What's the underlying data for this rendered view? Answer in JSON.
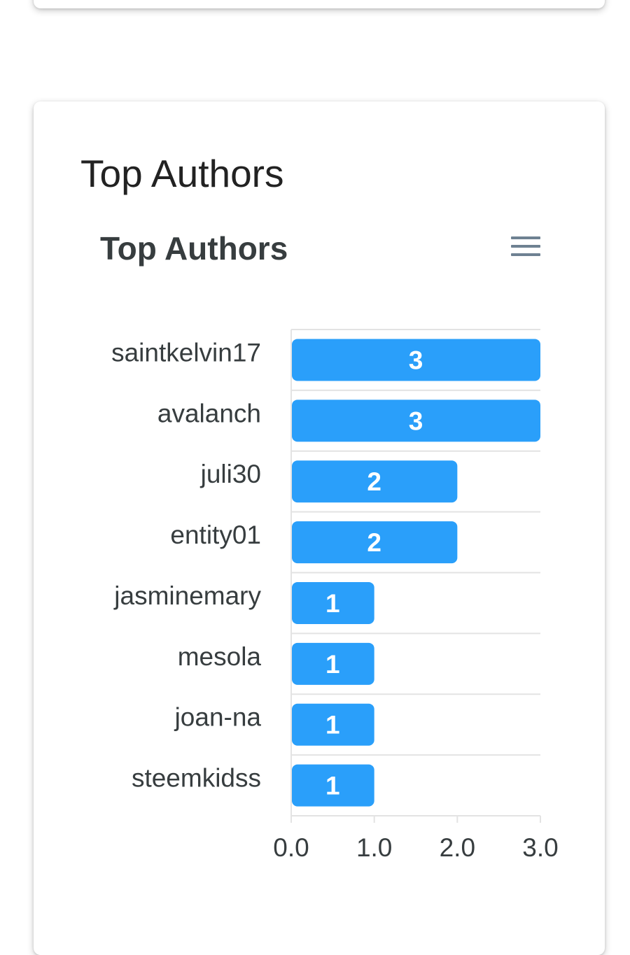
{
  "card": {
    "title": "Top Authors"
  },
  "toolbar": {
    "menu_icon": "hamburger-menu-icon"
  },
  "colors": {
    "bar": "#2a9ffa",
    "bar_label": "#ffffff",
    "category_label": "#373d3f",
    "grid": "#e3e3e3"
  },
  "chart_data": {
    "type": "bar",
    "orientation": "horizontal",
    "title": "Top Authors",
    "categories": [
      "saintkelvin17",
      "avalanch",
      "juli30",
      "entity01",
      "jasminemary",
      "mesola",
      "joan-na",
      "steemkidss"
    ],
    "values": [
      3,
      3,
      2,
      2,
      1,
      1,
      1,
      1
    ],
    "data_labels": [
      "3",
      "3",
      "2",
      "2",
      "1",
      "1",
      "1",
      "1"
    ],
    "xlim": [
      0,
      3
    ],
    "xticks": [
      0,
      1,
      2,
      3
    ],
    "xtick_labels": [
      "0.0",
      "1.0",
      "2.0",
      "3.0"
    ],
    "xlabel": "",
    "ylabel": "",
    "grid": true,
    "legend": "none"
  }
}
